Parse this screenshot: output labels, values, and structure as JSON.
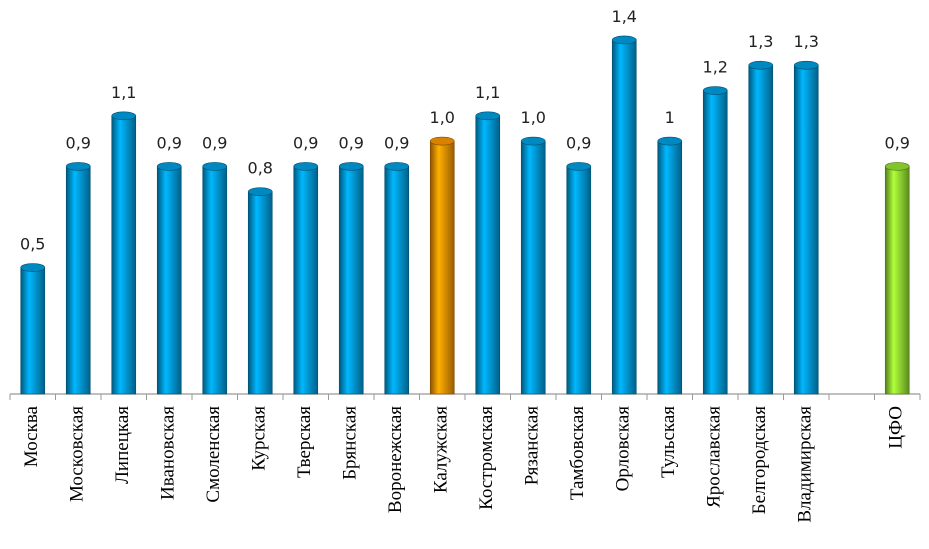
{
  "chart_data": {
    "type": "bar",
    "categories": [
      "Москва",
      "Московская",
      "Липецкая",
      "Ивановская",
      "Смоленская",
      "Курская",
      "Тверская",
      "Брянская",
      "Воронежская",
      "Калужская",
      "Костромская",
      "Рязанская",
      "Тамбовская",
      "Орловская",
      "Тульская",
      "Ярославская",
      "Белгородская",
      "Владимирская",
      null,
      "ЦФО"
    ],
    "values": [
      0.5,
      0.9,
      1.1,
      0.9,
      0.9,
      0.8,
      0.9,
      0.9,
      0.9,
      1.0,
      1.1,
      1.0,
      0.9,
      1.4,
      1,
      1.2,
      1.3,
      1.3,
      null,
      0.9
    ],
    "value_labels": [
      "0,5",
      "0,9",
      "1,1",
      "0,9",
      "0,9",
      "0,8",
      "0,9",
      "0,9",
      "0,9",
      "1,0",
      "1,1",
      "1,0",
      "0,9",
      "1,4",
      "1",
      "1,2",
      "1,3",
      "1,3",
      null,
      "0,9"
    ],
    "colors": [
      "#00a0e3",
      "#00a0e3",
      "#00a0e3",
      "#00a0e3",
      "#00a0e3",
      "#00a0e3",
      "#00a0e3",
      "#00a0e3",
      "#00a0e3",
      "#ff9900",
      "#00a0e3",
      "#00a0e3",
      "#00a0e3",
      "#00a0e3",
      "#00a0e3",
      "#00a0e3",
      "#00a0e3",
      "#00a0e3",
      null,
      "#99e633"
    ],
    "ylim": [
      0,
      1.55
    ]
  }
}
